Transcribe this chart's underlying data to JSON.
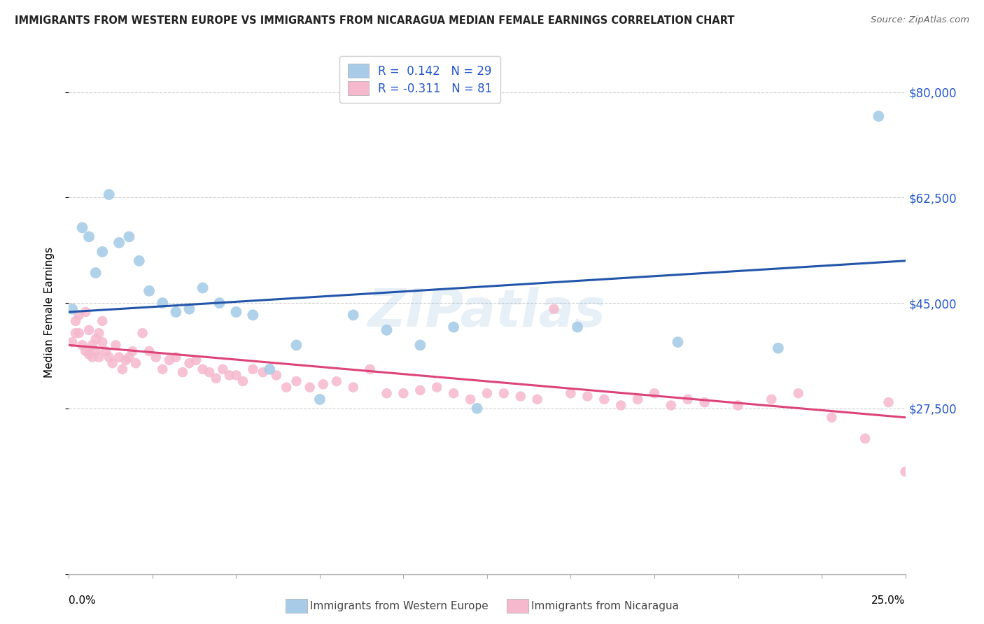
{
  "title": "IMMIGRANTS FROM WESTERN EUROPE VS IMMIGRANTS FROM NICARAGUA MEDIAN FEMALE EARNINGS CORRELATION CHART",
  "source": "Source: ZipAtlas.com",
  "ylabel": "Median Female Earnings",
  "yticks": [
    0,
    27500,
    45000,
    62500,
    80000
  ],
  "ytick_labels": [
    "",
    "$27,500",
    "$45,000",
    "$62,500",
    "$80,000"
  ],
  "xlim": [
    0.0,
    0.25
  ],
  "ylim": [
    0,
    87000
  ],
  "r_blue": 0.142,
  "n_blue": 29,
  "r_pink": -0.311,
  "n_pink": 81,
  "blue_color": "#a8cce8",
  "pink_color": "#f5b8cd",
  "blue_line_color": "#2255aa",
  "pink_line_color": "#dd4477",
  "watermark": "ZIPatlas",
  "blue_line_x0": 0.0,
  "blue_line_y0": 43500,
  "blue_line_x1": 0.25,
  "blue_line_y1": 52000,
  "pink_line_x0": 0.0,
  "pink_line_y0": 38000,
  "pink_line_x1": 0.25,
  "pink_line_y1": 26000,
  "blue_points_x": [
    0.001,
    0.004,
    0.006,
    0.008,
    0.01,
    0.012,
    0.015,
    0.018,
    0.021,
    0.024,
    0.028,
    0.032,
    0.036,
    0.04,
    0.045,
    0.05,
    0.055,
    0.06,
    0.068,
    0.075,
    0.085,
    0.095,
    0.105,
    0.115,
    0.122,
    0.152,
    0.182,
    0.212,
    0.242
  ],
  "blue_points_y": [
    44000,
    57500,
    56000,
    50000,
    53500,
    63000,
    55000,
    56000,
    52000,
    47000,
    45000,
    43500,
    44000,
    47500,
    45000,
    43500,
    43000,
    34000,
    38000,
    29000,
    43000,
    40500,
    38000,
    41000,
    27500,
    41000,
    38500,
    37500,
    76000
  ],
  "pink_points_x": [
    0.001,
    0.002,
    0.002,
    0.003,
    0.003,
    0.004,
    0.005,
    0.005,
    0.006,
    0.006,
    0.007,
    0.007,
    0.008,
    0.008,
    0.009,
    0.009,
    0.01,
    0.01,
    0.011,
    0.012,
    0.013,
    0.014,
    0.015,
    0.016,
    0.017,
    0.018,
    0.019,
    0.02,
    0.022,
    0.024,
    0.026,
    0.028,
    0.03,
    0.032,
    0.034,
    0.036,
    0.038,
    0.04,
    0.042,
    0.044,
    0.046,
    0.048,
    0.05,
    0.052,
    0.055,
    0.058,
    0.062,
    0.065,
    0.068,
    0.072,
    0.076,
    0.08,
    0.085,
    0.09,
    0.095,
    0.1,
    0.105,
    0.11,
    0.115,
    0.12,
    0.125,
    0.13,
    0.135,
    0.14,
    0.145,
    0.15,
    0.155,
    0.16,
    0.165,
    0.17,
    0.175,
    0.18,
    0.185,
    0.19,
    0.2,
    0.21,
    0.218,
    0.228,
    0.238,
    0.245,
    0.25
  ],
  "pink_points_y": [
    38500,
    40000,
    42000,
    40000,
    43000,
    38000,
    37000,
    43500,
    36500,
    40500,
    38000,
    36000,
    37000,
    39000,
    40000,
    36000,
    38500,
    42000,
    37000,
    36000,
    35000,
    38000,
    36000,
    34000,
    35500,
    36000,
    37000,
    35000,
    40000,
    37000,
    36000,
    34000,
    35500,
    36000,
    33500,
    35000,
    35500,
    34000,
    33500,
    32500,
    34000,
    33000,
    33000,
    32000,
    34000,
    33500,
    33000,
    31000,
    32000,
    31000,
    31500,
    32000,
    31000,
    34000,
    30000,
    30000,
    30500,
    31000,
    30000,
    29000,
    30000,
    30000,
    29500,
    29000,
    44000,
    30000,
    29500,
    29000,
    28000,
    29000,
    30000,
    28000,
    29000,
    28500,
    28000,
    29000,
    30000,
    26000,
    22500,
    28500,
    17000
  ]
}
